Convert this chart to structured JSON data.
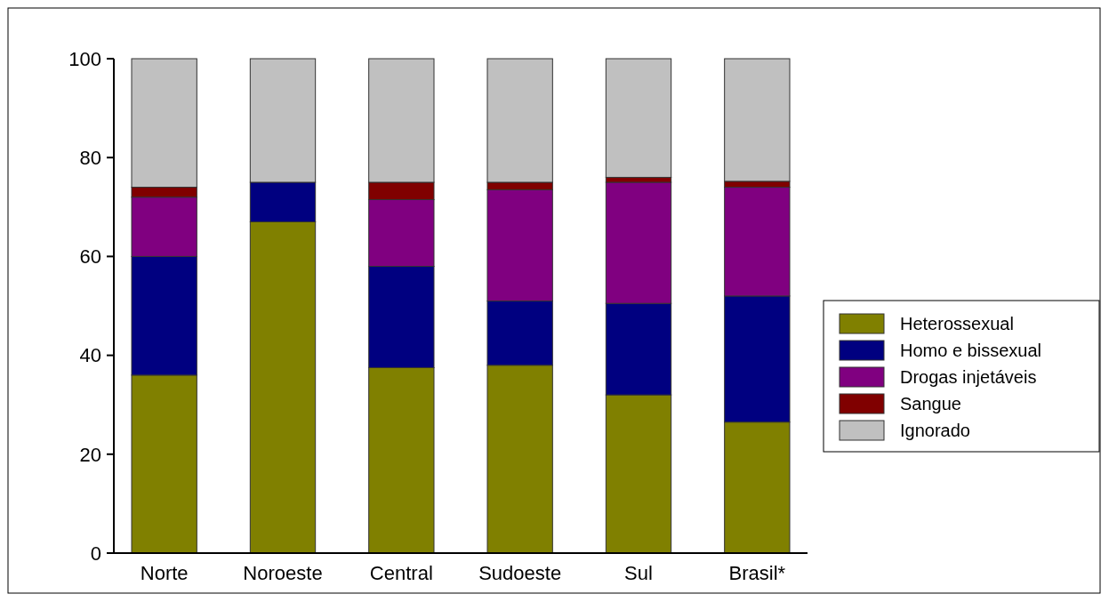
{
  "chart_data": {
    "type": "bar",
    "stacked": true,
    "categories": [
      "Norte",
      "Noroeste",
      "Central",
      "Sudoeste",
      "Sul",
      "Brasil*"
    ],
    "series": [
      {
        "name": "Heterossexual",
        "color": "#808000",
        "values": [
          36,
          67,
          37.5,
          38,
          32,
          26.5
        ]
      },
      {
        "name": "Homo e bissexual",
        "color": "#000080",
        "values": [
          24,
          8,
          20.5,
          13,
          18.5,
          25.5
        ]
      },
      {
        "name": "Drogas injetáveis",
        "color": "#800080",
        "values": [
          12,
          0,
          13.5,
          22.5,
          24.5,
          22
        ]
      },
      {
        "name": "Sangue",
        "color": "#800000",
        "values": [
          2,
          0,
          3.5,
          1.5,
          1,
          1.2
        ]
      },
      {
        "name": "Ignorado",
        "color": "#c0c0c0",
        "values": [
          26,
          25,
          25,
          25,
          24,
          24.8
        ]
      }
    ],
    "ylim": [
      0,
      100
    ],
    "yticks": [
      0,
      20,
      40,
      60,
      80,
      100
    ],
    "grid": false,
    "legend": "right"
  }
}
